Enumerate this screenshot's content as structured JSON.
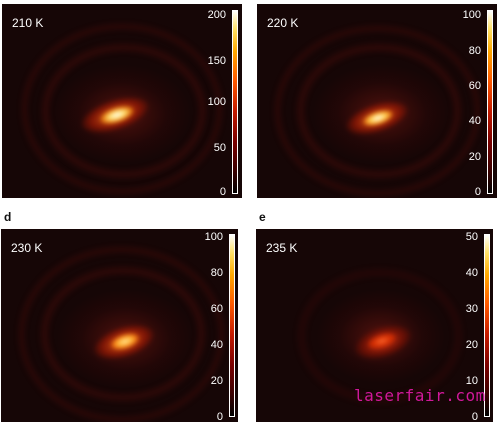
{
  "panels": [
    {
      "label": "210 K",
      "ticks": [
        "200",
        "150",
        "100",
        "50",
        "0"
      ]
    },
    {
      "label": "220 K",
      "ticks": [
        "100",
        "80",
        "60",
        "40",
        "20",
        "0"
      ]
    },
    {
      "label": "230 K",
      "ticks": [
        "100",
        "80",
        "60",
        "40",
        "20",
        "0"
      ]
    },
    {
      "label": "235 K",
      "ticks": [
        "50",
        "40",
        "30",
        "20",
        "10",
        "0"
      ]
    }
  ],
  "panel_letters": {
    "d": "d",
    "e": "e"
  },
  "watermark": "laserfair.com",
  "colors": {
    "background": "#160606",
    "peak": "#ffffff",
    "mid": "#ff5a00",
    "low": "#3a0000"
  },
  "colormap": "hot"
}
